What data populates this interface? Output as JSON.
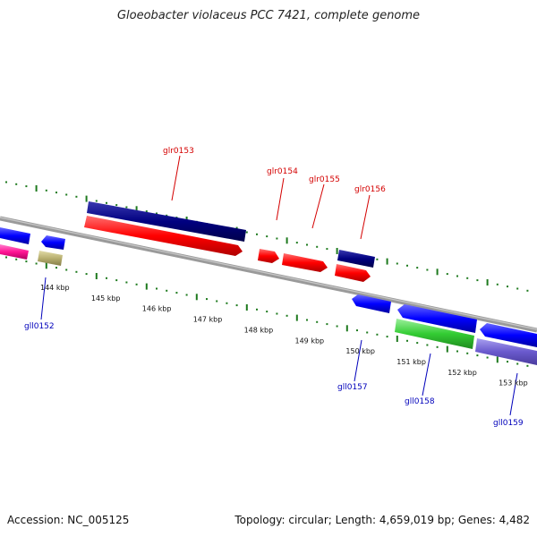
{
  "title": "Gloeobacter violaceus PCC 7421, complete genome",
  "footer": {
    "accession": "Accession: NC_005125",
    "stats": "Topology: circular; Length: 4,659,019 bp; Genes: 4,482"
  },
  "colors": {
    "plus_label": "#d40000",
    "minus_label": "#0000bb",
    "backbone": "#808080",
    "scale_ticks": "#1e7a1e"
  },
  "scale": {
    "unit": "kbp",
    "labels": [
      "144 kbp",
      "145 kbp",
      "146 kbp",
      "147 kbp",
      "148 kbp",
      "149 kbp",
      "150 kbp",
      "151 kbp",
      "152 kbp",
      "153 kbp"
    ]
  },
  "genes": [
    {
      "name": "glr0153",
      "strand": "+",
      "color": "#000080"
    },
    {
      "name": "glr0154",
      "strand": "+",
      "color": "#ff0000"
    },
    {
      "name": "glr0155",
      "strand": "+",
      "color": "#ff0000"
    },
    {
      "name": "glr0156",
      "strand": "+",
      "color": "#000080"
    },
    {
      "name": "gll0152",
      "strand": "-",
      "color": "#b8b070"
    },
    {
      "name": "gll0157",
      "strand": "-",
      "color": "#0000ff"
    },
    {
      "name": "gll0158",
      "strand": "-",
      "color": "#33cc33"
    },
    {
      "name": "gll0159",
      "strand": "-",
      "color": "#6a5acd"
    }
  ]
}
